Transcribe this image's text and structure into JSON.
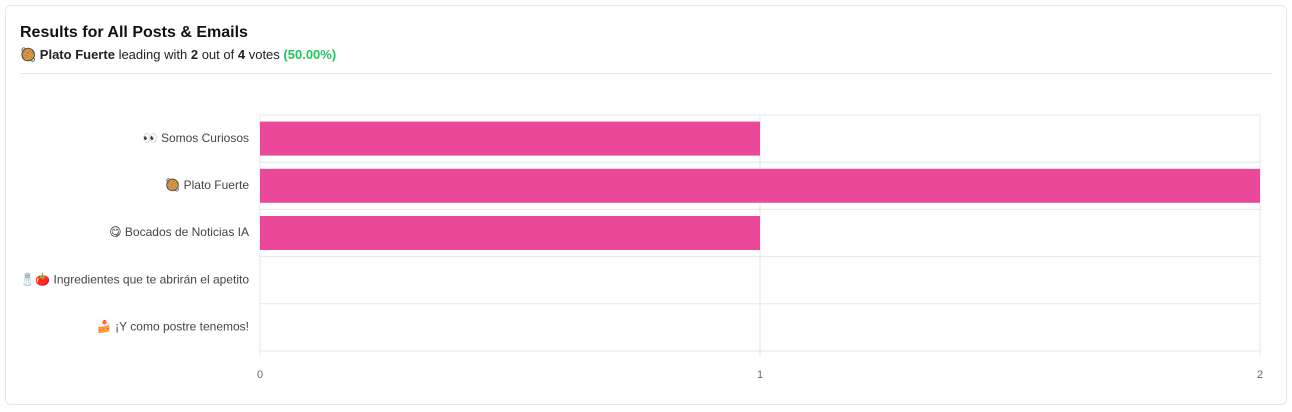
{
  "header": {
    "title": "Results for All Posts & Emails",
    "leader": "🥘 Plato Fuerte",
    "text_1": "leading with",
    "leader_votes": 2,
    "text_2": "out of",
    "total_votes": 4,
    "text_3": "votes",
    "share": "(50.00%)"
  },
  "chart_data": {
    "type": "bar",
    "orientation": "horizontal",
    "categories": [
      "👀 Somos Curiosos",
      "🥘 Plato Fuerte",
      "😋 Bocados de Noticias IA",
      "🧂🍅 Ingredientes que te abrirán el apetito",
      "🍰 ¡Y como postre tenemos!"
    ],
    "values": [
      1,
      2,
      1,
      0,
      0
    ],
    "color": "#ec4899",
    "xlim": [
      0,
      2
    ],
    "xticks": [
      0,
      1,
      2
    ],
    "grid": true
  }
}
